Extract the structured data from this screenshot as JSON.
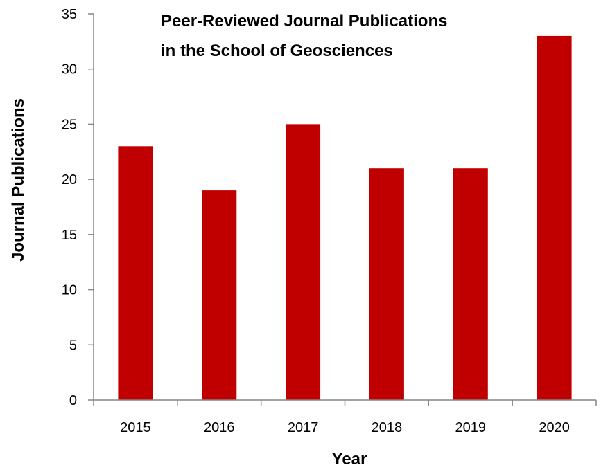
{
  "chart_data": {
    "type": "bar",
    "title_lines": [
      "Peer-Reviewed Journal Publications",
      "in the School of Geosciences"
    ],
    "xlabel": "Year",
    "ylabel": "Journal Publications",
    "categories": [
      "2015",
      "2016",
      "2017",
      "2018",
      "2019",
      "2020"
    ],
    "values": [
      23,
      19,
      25,
      21,
      21,
      33
    ],
    "ylim": [
      0,
      35
    ],
    "yticks": [
      "0",
      "5",
      "10",
      "15",
      "20",
      "25",
      "30",
      "35"
    ],
    "ytick_values": [
      0,
      5,
      10,
      15,
      20,
      25,
      30,
      35
    ],
    "bar_color": "#c00000",
    "grid": false,
    "legend": "none"
  }
}
